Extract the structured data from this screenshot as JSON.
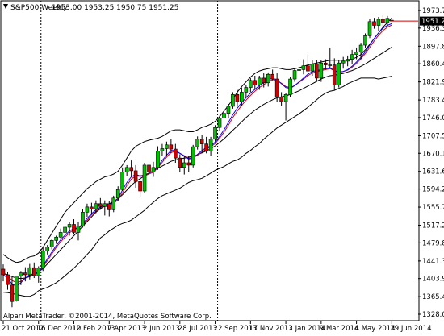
{
  "chart_data": {
    "type": "candlestick",
    "symbol_label": "S&P500,Weekly",
    "ohlc_label": "1953.00 1953.25 1950.75 1951.25",
    "current_price_label": "1951.25",
    "copyright": "Alpari MetaTrader, ©2001-2014, MetaQuotes Software Corp.",
    "colors": {
      "bull": "#00c000",
      "bear": "#d00000",
      "ma": "#0000ff",
      "ma2": "#d00000",
      "bands": "#000000",
      "axis": "#000000",
      "label_bg": "#000000",
      "label_fg": "#ffffff"
    },
    "y_ticks": [
      "1973.70",
      "1936.30",
      "1897.80",
      "1860.40",
      "1821.90",
      "1783.40",
      "1746.00",
      "1707.50",
      "1670.10",
      "1631.60",
      "1594.20",
      "1555.70",
      "1517.20",
      "1479.80",
      "1441.30",
      "1403.90",
      "1365.40",
      "1328.00"
    ],
    "x_ticks": [
      "21 Oct 2012",
      "16 Dec 2012",
      "10 Feb 2013",
      "7 Apr 2013",
      "2 Jun 2013",
      "28 Jul 2013",
      "22 Sep 2013",
      "17 Nov 2013",
      "12 Jan 2014",
      "9 Mar 2014",
      "4 May 2014",
      "29 Jun 2014"
    ],
    "ylim": [
      1328.0,
      1973.7
    ],
    "separators_at_week": [
      8,
      48
    ],
    "start_week_label": "21 Oct 2012",
    "candles": [
      {
        "o": 1424,
        "h": 1434,
        "l": 1398,
        "c": 1412
      },
      {
        "o": 1412,
        "h": 1418,
        "l": 1380,
        "c": 1391
      },
      {
        "o": 1390,
        "h": 1407,
        "l": 1343,
        "c": 1355
      },
      {
        "o": 1356,
        "h": 1410,
        "l": 1355,
        "c": 1409
      },
      {
        "o": 1409,
        "h": 1420,
        "l": 1390,
        "c": 1416
      },
      {
        "o": 1416,
        "h": 1428,
        "l": 1398,
        "c": 1412
      },
      {
        "o": 1412,
        "h": 1435,
        "l": 1402,
        "c": 1427
      },
      {
        "o": 1427,
        "h": 1438,
        "l": 1405,
        "c": 1410
      },
      {
        "o": 1410,
        "h": 1430,
        "l": 1395,
        "c": 1426
      },
      {
        "o": 1426,
        "h": 1470,
        "l": 1420,
        "c": 1462
      },
      {
        "o": 1462,
        "h": 1475,
        "l": 1455,
        "c": 1471
      },
      {
        "o": 1471,
        "h": 1488,
        "l": 1466,
        "c": 1485
      },
      {
        "o": 1485,
        "h": 1495,
        "l": 1478,
        "c": 1492
      },
      {
        "o": 1492,
        "h": 1510,
        "l": 1490,
        "c": 1502
      },
      {
        "o": 1502,
        "h": 1515,
        "l": 1496,
        "c": 1513
      },
      {
        "o": 1513,
        "h": 1524,
        "l": 1495,
        "c": 1519
      },
      {
        "o": 1519,
        "h": 1530,
        "l": 1498,
        "c": 1502
      },
      {
        "o": 1502,
        "h": 1525,
        "l": 1485,
        "c": 1515
      },
      {
        "o": 1515,
        "h": 1552,
        "l": 1512,
        "c": 1545
      },
      {
        "o": 1545,
        "h": 1563,
        "l": 1535,
        "c": 1556
      },
      {
        "o": 1556,
        "h": 1565,
        "l": 1540,
        "c": 1552
      },
      {
        "o": 1552,
        "h": 1570,
        "l": 1543,
        "c": 1563
      },
      {
        "o": 1563,
        "h": 1575,
        "l": 1550,
        "c": 1557
      },
      {
        "o": 1557,
        "h": 1570,
        "l": 1538,
        "c": 1563
      },
      {
        "o": 1563,
        "h": 1568,
        "l": 1536,
        "c": 1550
      },
      {
        "o": 1550,
        "h": 1580,
        "l": 1545,
        "c": 1575
      },
      {
        "o": 1575,
        "h": 1600,
        "l": 1568,
        "c": 1593
      },
      {
        "o": 1593,
        "h": 1640,
        "l": 1590,
        "c": 1630
      },
      {
        "o": 1630,
        "h": 1645,
        "l": 1622,
        "c": 1640
      },
      {
        "o": 1640,
        "h": 1655,
        "l": 1620,
        "c": 1633
      },
      {
        "o": 1633,
        "h": 1645,
        "l": 1597,
        "c": 1610
      },
      {
        "o": 1610,
        "h": 1625,
        "l": 1576,
        "c": 1590
      },
      {
        "o": 1590,
        "h": 1650,
        "l": 1585,
        "c": 1645
      },
      {
        "o": 1645,
        "h": 1650,
        "l": 1620,
        "c": 1630
      },
      {
        "o": 1630,
        "h": 1652,
        "l": 1620,
        "c": 1640
      },
      {
        "o": 1640,
        "h": 1685,
        "l": 1635,
        "c": 1675
      },
      {
        "o": 1675,
        "h": 1690,
        "l": 1665,
        "c": 1680
      },
      {
        "o": 1680,
        "h": 1695,
        "l": 1665,
        "c": 1688
      },
      {
        "o": 1688,
        "h": 1700,
        "l": 1670,
        "c": 1679
      },
      {
        "o": 1679,
        "h": 1690,
        "l": 1650,
        "c": 1660
      },
      {
        "o": 1660,
        "h": 1668,
        "l": 1630,
        "c": 1640
      },
      {
        "o": 1640,
        "h": 1665,
        "l": 1625,
        "c": 1650
      },
      {
        "o": 1650,
        "h": 1665,
        "l": 1630,
        "c": 1645
      },
      {
        "o": 1645,
        "h": 1688,
        "l": 1640,
        "c": 1684
      },
      {
        "o": 1684,
        "h": 1706,
        "l": 1678,
        "c": 1700
      },
      {
        "o": 1700,
        "h": 1710,
        "l": 1670,
        "c": 1690
      },
      {
        "o": 1690,
        "h": 1705,
        "l": 1670,
        "c": 1675
      },
      {
        "o": 1675,
        "h": 1705,
        "l": 1665,
        "c": 1700
      },
      {
        "o": 1700,
        "h": 1730,
        "l": 1695,
        "c": 1725
      },
      {
        "o": 1725,
        "h": 1750,
        "l": 1718,
        "c": 1745
      },
      {
        "o": 1745,
        "h": 1765,
        "l": 1735,
        "c": 1755
      },
      {
        "o": 1755,
        "h": 1775,
        "l": 1745,
        "c": 1770
      },
      {
        "o": 1770,
        "h": 1800,
        "l": 1765,
        "c": 1795
      },
      {
        "o": 1795,
        "h": 1805,
        "l": 1770,
        "c": 1780
      },
      {
        "o": 1780,
        "h": 1810,
        "l": 1772,
        "c": 1800
      },
      {
        "o": 1800,
        "h": 1815,
        "l": 1790,
        "c": 1810
      },
      {
        "o": 1810,
        "h": 1830,
        "l": 1800,
        "c": 1825
      },
      {
        "o": 1825,
        "h": 1835,
        "l": 1805,
        "c": 1815
      },
      {
        "o": 1815,
        "h": 1835,
        "l": 1805,
        "c": 1830
      },
      {
        "o": 1830,
        "h": 1840,
        "l": 1810,
        "c": 1820
      },
      {
        "o": 1820,
        "h": 1842,
        "l": 1812,
        "c": 1838
      },
      {
        "o": 1838,
        "h": 1848,
        "l": 1825,
        "c": 1828
      },
      {
        "o": 1828,
        "h": 1840,
        "l": 1780,
        "c": 1790
      },
      {
        "o": 1790,
        "h": 1800,
        "l": 1770,
        "c": 1780
      },
      {
        "o": 1780,
        "h": 1798,
        "l": 1740,
        "c": 1795
      },
      {
        "o": 1795,
        "h": 1832,
        "l": 1790,
        "c": 1828
      },
      {
        "o": 1828,
        "h": 1850,
        "l": 1822,
        "c": 1846
      },
      {
        "o": 1846,
        "h": 1860,
        "l": 1835,
        "c": 1848
      },
      {
        "o": 1848,
        "h": 1870,
        "l": 1838,
        "c": 1856
      },
      {
        "o": 1856,
        "h": 1880,
        "l": 1840,
        "c": 1845
      },
      {
        "o": 1845,
        "h": 1868,
        "l": 1835,
        "c": 1860
      },
      {
        "o": 1860,
        "h": 1868,
        "l": 1822,
        "c": 1830
      },
      {
        "o": 1830,
        "h": 1868,
        "l": 1822,
        "c": 1862
      },
      {
        "o": 1862,
        "h": 1870,
        "l": 1848,
        "c": 1858
      },
      {
        "o": 1858,
        "h": 1895,
        "l": 1852,
        "c": 1858
      },
      {
        "o": 1858,
        "h": 1872,
        "l": 1805,
        "c": 1815
      },
      {
        "o": 1815,
        "h": 1868,
        "l": 1810,
        "c": 1862
      },
      {
        "o": 1862,
        "h": 1875,
        "l": 1850,
        "c": 1866
      },
      {
        "o": 1866,
        "h": 1878,
        "l": 1855,
        "c": 1870
      },
      {
        "o": 1870,
        "h": 1890,
        "l": 1860,
        "c": 1880
      },
      {
        "o": 1880,
        "h": 1895,
        "l": 1870,
        "c": 1885
      },
      {
        "o": 1885,
        "h": 1905,
        "l": 1870,
        "c": 1900
      },
      {
        "o": 1900,
        "h": 1925,
        "l": 1895,
        "c": 1920
      },
      {
        "o": 1920,
        "h": 1955,
        "l": 1915,
        "c": 1950
      },
      {
        "o": 1950,
        "h": 1958,
        "l": 1935,
        "c": 1942
      },
      {
        "o": 1942,
        "h": 1960,
        "l": 1930,
        "c": 1955
      },
      {
        "o": 1955,
        "h": 1965,
        "l": 1938,
        "c": 1948
      },
      {
        "o": 1948,
        "h": 1962,
        "l": 1940,
        "c": 1957
      },
      {
        "o": 1953,
        "h": 1953.25,
        "l": 1950.75,
        "c": 1951.25
      }
    ],
    "upper_band": [
      1455,
      1448,
      1442,
      1438,
      1440,
      1445,
      1450,
      1452,
      1458,
      1470,
      1485,
      1500,
      1515,
      1530,
      1545,
      1555,
      1565,
      1575,
      1585,
      1595,
      1602,
      1610,
      1615,
      1620,
      1622,
      1626,
      1632,
      1645,
      1660,
      1675,
      1685,
      1690,
      1695,
      1698,
      1700,
      1702,
      1706,
      1712,
      1718,
      1720,
      1720,
      1718,
      1716,
      1716,
      1720,
      1725,
      1728,
      1732,
      1738,
      1748,
      1760,
      1772,
      1785,
      1800,
      1812,
      1822,
      1832,
      1840,
      1845,
      1848,
      1850,
      1852,
      1852,
      1850,
      1848,
      1848,
      1850,
      1852,
      1855,
      1858,
      1860,
      1862,
      1864,
      1866,
      1868,
      1868,
      1868,
      1868,
      1868,
      1870,
      1874,
      1880,
      1890,
      1902,
      1914,
      1926,
      1938,
      1948,
      1958
    ],
    "middle_band": [
      1415,
      1412,
      1408,
      1405,
      1404,
      1405,
      1408,
      1412,
      1418,
      1425,
      1435,
      1445,
      1455,
      1465,
      1475,
      1485,
      1495,
      1505,
      1515,
      1525,
      1535,
      1545,
      1552,
      1558,
      1563,
      1568,
      1574,
      1582,
      1592,
      1602,
      1610,
      1616,
      1622,
      1628,
      1633,
      1638,
      1643,
      1648,
      1653,
      1656,
      1658,
      1660,
      1662,
      1664,
      1667,
      1671,
      1675,
      1680,
      1686,
      1693,
      1701,
      1710,
      1719,
      1728,
      1737,
      1746,
      1754,
      1762,
      1768,
      1774,
      1779,
      1784,
      1788,
      1790,
      1792,
      1795,
      1799,
      1803,
      1808,
      1813,
      1818,
      1823,
      1828,
      1832,
      1835,
      1836,
      1838,
      1840,
      1843,
      1846,
      1850,
      1855,
      1860,
      1866,
      1872,
      1878,
      1884,
      1890,
      1896
    ],
    "lower_band": [
      1375,
      1374,
      1372,
      1370,
      1368,
      1366,
      1366,
      1370,
      1378,
      1382,
      1385,
      1390,
      1395,
      1402,
      1410,
      1418,
      1426,
      1435,
      1445,
      1455,
      1465,
      1478,
      1490,
      1497,
      1505,
      1511,
      1517,
      1521,
      1524,
      1528,
      1535,
      1542,
      1549,
      1558,
      1566,
      1574,
      1580,
      1584,
      1588,
      1592,
      1596,
      1602,
      1608,
      1612,
      1614,
      1617,
      1622,
      1628,
      1634,
      1638,
      1642,
      1648,
      1653,
      1656,
      1662,
      1670,
      1676,
      1684,
      1691,
      1700,
      1708,
      1716,
      1724,
      1730,
      1736,
      1742,
      1748,
      1754,
      1761,
      1768,
      1776,
      1784,
      1792,
      1798,
      1802,
      1804,
      1808,
      1812,
      1818,
      1822,
      1826,
      1830,
      1830,
      1830,
      1830,
      1828,
      1830,
      1832,
      1834
    ],
    "ma_fast": [
      1412,
      1405,
      1392,
      1388,
      1395,
      1405,
      1412,
      1414,
      1418,
      1430,
      1446,
      1460,
      1474,
      1486,
      1496,
      1505,
      1510,
      1512,
      1520,
      1532,
      1542,
      1550,
      1556,
      1560,
      1562,
      1566,
      1574,
      1592,
      1608,
      1620,
      1625,
      1622,
      1624,
      1628,
      1632,
      1642,
      1655,
      1666,
      1676,
      1676,
      1670,
      1664,
      1658,
      1660,
      1668,
      1676,
      1682,
      1686,
      1694,
      1706,
      1720,
      1736,
      1752,
      1766,
      1778,
      1788,
      1798,
      1806,
      1814,
      1820,
      1826,
      1830,
      1826,
      1818,
      1810,
      1808,
      1814,
      1822,
      1830,
      1838,
      1844,
      1846,
      1848,
      1850,
      1852,
      1846,
      1842,
      1844,
      1848,
      1855,
      1864,
      1874,
      1886,
      1900,
      1914,
      1926,
      1936,
      1942,
      1946
    ],
    "ma_slow": [
      1415,
      1410,
      1400,
      1395,
      1398,
      1405,
      1410,
      1413,
      1417,
      1428,
      1442,
      1456,
      1470,
      1482,
      1492,
      1501,
      1508,
      1511,
      1517,
      1528,
      1539,
      1547,
      1554,
      1558,
      1561,
      1564,
      1571,
      1586,
      1602,
      1615,
      1622,
      1621,
      1622,
      1626,
      1630,
      1639,
      1651,
      1662,
      1672,
      1674,
      1670,
      1665,
      1660,
      1661,
      1666,
      1673,
      1679,
      1684,
      1691,
      1702,
      1715,
      1730,
      1746,
      1760,
      1772,
      1783,
      1793,
      1802,
      1810,
      1816,
      1822,
      1827,
      1825,
      1819,
      1812,
      1810,
      1814,
      1821,
      1828,
      1835,
      1841,
      1844,
      1846,
      1848,
      1850,
      1846,
      1843,
      1844,
      1847,
      1853,
      1861,
      1871,
      1882,
      1895,
      1909,
      1921,
      1931,
      1938,
      1943
    ]
  }
}
